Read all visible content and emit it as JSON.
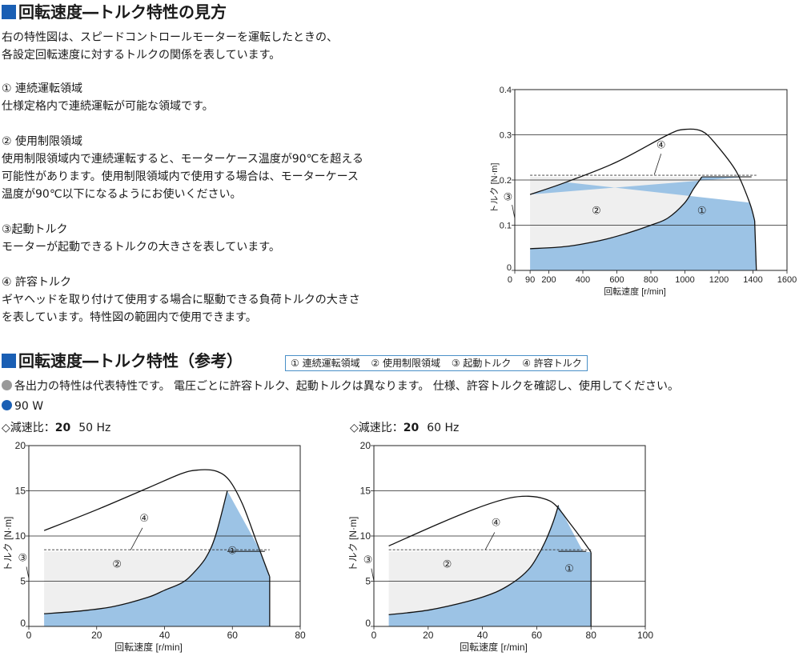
{
  "section1": {
    "title": "回転速度―トルク特性の見方",
    "intro": [
      "右の特性図は、スピードコントロールモーターを運転したときの、",
      "各設定回転速度に対するトルクの関係を表しています。"
    ],
    "items": [
      {
        "label": "① 連続運転領域",
        "desc": [
          "仕様定格内で連続運転が可能な領域です。"
        ]
      },
      {
        "label": "② 使用制限領域",
        "desc": [
          "使用制限領域内で連続運転すると、モーターケース温度が90℃を超える",
          "可能性があります。使用制限領域内で使用する場合は、モーターケース",
          "温度が90℃以下になるようにお使いください。"
        ]
      },
      {
        "label": "③起動トルク",
        "desc": [
          "モーターが起動できるトルクの大きさを表しています。"
        ]
      },
      {
        "label": "④ 許容トルク",
        "desc": [
          "ギヤヘッドを取り付けて使用する場合に駆動できる負荷トルクの大きさ",
          "を表しています。特性図の範囲内で使用できます。"
        ]
      }
    ]
  },
  "section2": {
    "title": "回転速度―トルク特性（参考）",
    "legend": [
      "① 連続運転領域",
      "② 使用制限領域",
      "③ 起動トルク",
      "④ 許容トルク"
    ],
    "note": "各出力の特性は代表特性です。 電圧ごとに許容トルク、起動トルクは異なります。 仕様、許容トルクを確認し、使用してください。",
    "output": "90 W",
    "charts": [
      {
        "prefix": "◇減速比：",
        "ratio": "20",
        "freq": "50 Hz"
      },
      {
        "prefix": "◇減速比：",
        "ratio": "20",
        "freq": "60 Hz"
      }
    ]
  },
  "colors": {
    "accent": "#1a5fb4",
    "region1": "#9cc3e5",
    "region2": "#efefef",
    "note_dot": "#999999",
    "output_dot": "#1a5fb4"
  },
  "chart_data": [
    {
      "type": "area",
      "ylabel": "トルク [N·m]",
      "xlabel": "回転速度 [r/min]",
      "xlim": [
        0,
        1600
      ],
      "ylim": [
        0,
        0.4
      ],
      "xticks": [
        "0",
        "90",
        "200",
        "400",
        "600",
        "800",
        "1000",
        "1200",
        "1400",
        "1600"
      ],
      "xtick_values": [
        0,
        90,
        200,
        400,
        600,
        800,
        1000,
        1200,
        1400,
        1600
      ],
      "yticks": [
        "0",
        "0.1",
        "0.2",
        "0.3",
        "0.4"
      ],
      "ytick_values": [
        0,
        0.1,
        0.2,
        0.3,
        0.4
      ],
      "region_labels": [
        "①",
        "②",
        "③",
        "④"
      ],
      "max_torque": {
        "x": [
          90,
          300,
          600,
          900,
          1000,
          1100,
          1180,
          1300,
          1380,
          1410
        ],
        "y": [
          0.168,
          0.195,
          0.24,
          0.3,
          0.312,
          0.308,
          0.28,
          0.22,
          0.15,
          0.11
        ]
      },
      "continuous": {
        "x": [
          90,
          300,
          500,
          650,
          800,
          900,
          1000,
          1050,
          1100
        ],
        "y": [
          0.048,
          0.053,
          0.066,
          0.081,
          0.1,
          0.116,
          0.15,
          0.18,
          0.207
        ]
      },
      "permissible_torque": 0.207,
      "speed_range": [
        90,
        1420
      ]
    },
    {
      "type": "area",
      "ylabel": "トルク [N·m]",
      "xlabel": "回転速度 [r/min]",
      "xlim": [
        0,
        80
      ],
      "ylim": [
        0,
        20
      ],
      "xticks": [
        "0",
        "20",
        "40",
        "60",
        "80"
      ],
      "xtick_values": [
        0,
        20,
        40,
        60,
        80
      ],
      "yticks": [
        "0",
        "5",
        "10",
        "15",
        "20"
      ],
      "ytick_values": [
        0,
        5,
        10,
        15,
        20
      ],
      "region_labels": [
        "①",
        "②",
        "③",
        "④"
      ],
      "max_torque": {
        "x": [
          4.5,
          20,
          35,
          45,
          50,
          55,
          59,
          63,
          67,
          70,
          71
        ],
        "y": [
          10.6,
          12.9,
          15.3,
          16.9,
          17.3,
          17.2,
          16.2,
          13.5,
          9.5,
          6.5,
          5.5
        ]
      },
      "continuous": {
        "x": [
          4.5,
          15,
          25,
          35,
          40,
          45,
          48,
          52,
          55,
          58.5
        ],
        "y": [
          1.4,
          1.7,
          2.2,
          3.2,
          4.0,
          4.8,
          5.7,
          7.5,
          10,
          15
        ]
      },
      "permissible_torque": 8.3,
      "speed_range": [
        4.5,
        71
      ]
    },
    {
      "type": "area",
      "ylabel": "トルク [N·m]",
      "xlabel": "回転速度 [r/min]",
      "xlim": [
        0,
        100
      ],
      "ylim": [
        0,
        20
      ],
      "xticks": [
        "0",
        "20",
        "40",
        "60",
        "80",
        "100"
      ],
      "xtick_values": [
        0,
        20,
        40,
        60,
        80,
        100
      ],
      "yticks": [
        "0",
        "5",
        "10",
        "15",
        "20"
      ],
      "ytick_values": [
        0,
        5,
        10,
        15,
        20
      ],
      "region_labels": [
        "①",
        "②",
        "③",
        "④"
      ],
      "max_torque": {
        "x": [
          5.5,
          25,
          40,
          50,
          57,
          63,
          67,
          72,
          77,
          80
        ],
        "y": [
          8.9,
          11.5,
          13.3,
          14.2,
          14.4,
          14.1,
          13.4,
          11.5,
          9.5,
          8.2
        ]
      },
      "continuous": {
        "x": [
          5.5,
          20,
          35,
          45,
          52,
          57,
          60,
          63,
          66,
          68
        ],
        "y": [
          1.3,
          1.8,
          2.8,
          3.8,
          5.0,
          6.3,
          7.6,
          9.3,
          11.5,
          13.4
        ]
      },
      "permissible_torque": 8.3,
      "speed_range": [
        5.5,
        80
      ]
    }
  ]
}
